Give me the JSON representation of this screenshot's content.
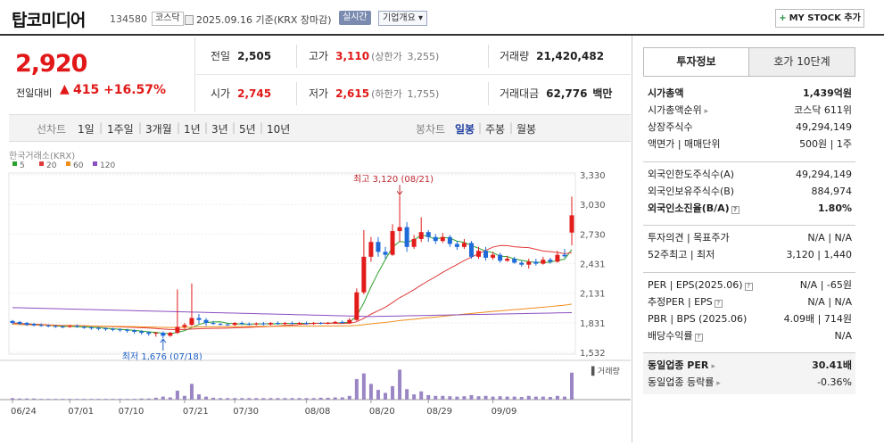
{
  "header": {
    "name": "탑코미디어",
    "code": "134580",
    "market": "코스닥",
    "date": "2025.09.16",
    "basis": "기준(KRX 장마감)",
    "realtime": "실시간",
    "overview": "기업개요",
    "mystock": "MY STOCK 추가"
  },
  "price": {
    "current": "2,920",
    "change_label": "전일대비",
    "change": "415",
    "change_pct": "+16.57%"
  },
  "info": {
    "prev_label": "전일",
    "prev": "2,505",
    "high_label": "고가",
    "high": "3,110",
    "upper_label": "(상한가",
    "upper": "3,255)",
    "vol_label": "거래량",
    "vol": "21,420,482",
    "open_label": "시가",
    "open": "2,745",
    "low_label": "저가",
    "low": "2,615",
    "lower_label": "(하한가",
    "lower": "1,755)",
    "amt_label": "거래대금",
    "amt": "62,776",
    "amt_unit": "백만"
  },
  "periods": {
    "line_label": "선차트",
    "items": [
      "1일",
      "1주일",
      "3개월",
      "1년",
      "3년",
      "5년",
      "10년"
    ],
    "candle_label": "봉차트",
    "candle_items": [
      "일봉",
      "주봉",
      "월봉"
    ]
  },
  "chart_labels": {
    "source": "한국거래소(KRX)",
    "legend": [
      "5",
      "20",
      "60",
      "120"
    ],
    "legend_colors": [
      "#2ca02c",
      "#e03a3a",
      "#f08c1a",
      "#8a4fc0"
    ],
    "high_note": "최고 3,120 (08/21)",
    "low_note": "최저 1,676 (07/18)",
    "vol_label": "거래량",
    "yticks": [
      "3,330",
      "3,030",
      "2,730",
      "2,431",
      "2,131",
      "1,831",
      "1,532"
    ],
    "xticks": [
      "06/24",
      "07/01",
      "07/10",
      "07/21",
      "07/30",
      "08/08",
      "08/20",
      "08/29",
      "09/09"
    ]
  },
  "chart_data": {
    "type": "candlestick",
    "ylim": [
      1532,
      3330
    ],
    "yticks": [
      3330,
      3030,
      2730,
      2431,
      2131,
      1831,
      1532
    ],
    "xticks": [
      "06/24",
      "07/01",
      "07/10",
      "07/21",
      "07/30",
      "08/08",
      "08/20",
      "08/29",
      "09/09"
    ],
    "candles": [
      [
        1850,
        1830,
        1860,
        1815
      ],
      [
        1840,
        1820,
        1850,
        1810
      ],
      [
        1830,
        1810,
        1840,
        1800
      ],
      [
        1820,
        1805,
        1830,
        1795
      ],
      [
        1810,
        1800,
        1825,
        1790
      ],
      [
        1805,
        1795,
        1815,
        1785
      ],
      [
        1800,
        1790,
        1810,
        1780
      ],
      [
        1795,
        1785,
        1805,
        1775
      ],
      [
        1790,
        1800,
        1810,
        1780
      ],
      [
        1800,
        1790,
        1815,
        1780
      ],
      [
        1790,
        1780,
        1800,
        1770
      ],
      [
        1785,
        1775,
        1795,
        1760
      ],
      [
        1780,
        1770,
        1790,
        1755
      ],
      [
        1775,
        1765,
        1785,
        1750
      ],
      [
        1770,
        1760,
        1780,
        1745
      ],
      [
        1765,
        1760,
        1775,
        1740
      ],
      [
        1760,
        1750,
        1770,
        1730
      ],
      [
        1755,
        1740,
        1765,
        1720
      ],
      [
        1745,
        1730,
        1755,
        1710
      ],
      [
        1735,
        1720,
        1745,
        1700
      ],
      [
        1725,
        1730,
        1740,
        1690
      ],
      [
        1730,
        1700,
        1745,
        1676
      ],
      [
        1700,
        1730,
        1740,
        1690
      ],
      [
        1730,
        1790,
        2170,
        1720
      ],
      [
        1790,
        1810,
        1830,
        1770
      ],
      [
        1810,
        1880,
        2230,
        1800
      ],
      [
        1880,
        1860,
        1920,
        1820
      ],
      [
        1860,
        1830,
        1880,
        1800
      ],
      [
        1830,
        1820,
        1850,
        1810
      ],
      [
        1820,
        1815,
        1830,
        1805
      ],
      [
        1815,
        1810,
        1825,
        1800
      ],
      [
        1810,
        1830,
        1840,
        1800
      ],
      [
        1830,
        1820,
        1845,
        1810
      ],
      [
        1820,
        1815,
        1835,
        1805
      ],
      [
        1815,
        1825,
        1835,
        1805
      ],
      [
        1825,
        1815,
        1840,
        1805
      ],
      [
        1815,
        1830,
        1840,
        1805
      ],
      [
        1830,
        1820,
        1845,
        1810
      ],
      [
        1820,
        1830,
        1840,
        1810
      ],
      [
        1830,
        1825,
        1845,
        1815
      ],
      [
        1825,
        1830,
        1840,
        1815
      ],
      [
        1830,
        1820,
        1845,
        1810
      ],
      [
        1820,
        1830,
        1840,
        1810
      ],
      [
        1830,
        1825,
        1840,
        1815
      ],
      [
        1825,
        1830,
        1840,
        1815
      ],
      [
        1830,
        1840,
        1850,
        1820
      ],
      [
        1840,
        1830,
        1855,
        1820
      ],
      [
        1830,
        1860,
        1880,
        1820
      ],
      [
        1860,
        2140,
        2180,
        1850
      ],
      [
        2140,
        2500,
        2770,
        2120
      ],
      [
        2500,
        2650,
        2700,
        2450
      ],
      [
        2650,
        2550,
        2700,
        2500
      ],
      [
        2550,
        2520,
        2600,
        2480
      ],
      [
        2520,
        2760,
        2830,
        2510
      ],
      [
        2760,
        2800,
        3120,
        2650
      ],
      [
        2800,
        2600,
        2850,
        2550
      ],
      [
        2600,
        2680,
        2720,
        2580
      ],
      [
        2680,
        2750,
        2900,
        2650
      ],
      [
        2750,
        2700,
        2770,
        2650
      ],
      [
        2700,
        2660,
        2730,
        2630
      ],
      [
        2660,
        2700,
        2740,
        2640
      ],
      [
        2700,
        2630,
        2720,
        2600
      ],
      [
        2630,
        2600,
        2660,
        2570
      ],
      [
        2600,
        2640,
        2680,
        2580
      ],
      [
        2640,
        2500,
        2660,
        2480
      ],
      [
        2500,
        2560,
        2600,
        2480
      ],
      [
        2560,
        2490,
        2600,
        2460
      ],
      [
        2490,
        2520,
        2550,
        2470
      ],
      [
        2520,
        2460,
        2540,
        2440
      ],
      [
        2460,
        2480,
        2510,
        2450
      ],
      [
        2480,
        2440,
        2500,
        2430
      ],
      [
        2440,
        2420,
        2460,
        2400
      ],
      [
        2420,
        2450,
        2480,
        2380
      ],
      [
        2450,
        2430,
        2480,
        2410
      ],
      [
        2430,
        2470,
        2500,
        2420
      ],
      [
        2470,
        2450,
        2490,
        2430
      ],
      [
        2450,
        2520,
        2560,
        2440
      ],
      [
        2520,
        2505,
        2580,
        2490
      ],
      [
        2745,
        2920,
        3110,
        2615
      ]
    ],
    "volume_note": "relative bars shown",
    "ma_legend": [
      "5",
      "20",
      "60",
      "120"
    ]
  },
  "side": {
    "tab1": "투자정보",
    "tab2": "호가 10단계",
    "rows1": [
      {
        "l": "시가총액",
        "r": "1,439억원"
      },
      {
        "l": "시가총액순위",
        "r": "코스닥 611위"
      },
      {
        "l": "상장주식수",
        "r": "49,294,149"
      },
      {
        "l": "액면가 | 매매단위",
        "r": "500원 | 1주"
      }
    ],
    "rows2": [
      {
        "l": "외국인한도주식수(A)",
        "r": "49,294,149"
      },
      {
        "l": "외국인보유주식수(B)",
        "r": "884,974"
      },
      {
        "l": "외국인소진율(B/A)",
        "r": "1.80%"
      }
    ],
    "rows3": [
      {
        "l": "투자의견 | 목표주가",
        "r": "N/A | N/A"
      },
      {
        "l": "52주최고 | 최저",
        "r": "3,120 | 1,440"
      }
    ],
    "rows4": [
      {
        "l": "PER | EPS(2025.06)",
        "r": "N/A | -65원"
      },
      {
        "l": "추정PER | EPS",
        "r": "N/A | N/A"
      },
      {
        "l": "PBR | BPS (2025.06)",
        "r": "4.09배 | 714원"
      },
      {
        "l": "배당수익률",
        "r": "N/A"
      }
    ],
    "rows5": [
      {
        "l": "동일업종 PER",
        "r": "30.41배"
      },
      {
        "l": "동일업종 등락률",
        "r": "-0.36%"
      }
    ]
  }
}
